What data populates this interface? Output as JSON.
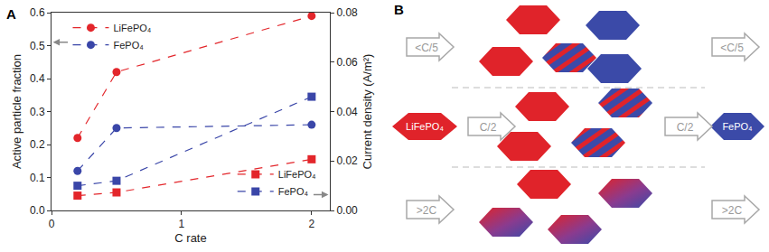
{
  "chart_data": {
    "type": "line",
    "panel_label": "A",
    "x_label": "C rate",
    "y_label": "Active particle fraction",
    "y2_label": "Current density (A/m²)",
    "x": [
      0.2,
      0.5,
      2
    ],
    "xlim": [
      0,
      2.14
    ],
    "xticks": [
      0,
      1,
      2
    ],
    "ylim": [
      0,
      0.6
    ],
    "yticks": [
      {
        "value": 0,
        "label": "0.0"
      },
      0.1,
      0.2,
      0.3,
      0.4,
      0.5,
      0.6
    ],
    "y2lim": [
      0,
      0.08
    ],
    "y2ticks": [
      {
        "value": 0,
        "label": "0.00"
      },
      0.02,
      0.04,
      0.06,
      0.08
    ],
    "legend": "upper left",
    "grid": false,
    "series": [
      {
        "name": "LiFePO₄",
        "color": "#e3262b",
        "marker": "circle",
        "line_style": "dash",
        "axis": "y",
        "values": [
          0.22,
          0.42,
          0.59
        ]
      },
      {
        "name": "FePO₄",
        "color": "#3a46a8",
        "marker": "circle",
        "line_style": "dash",
        "axis": "y",
        "values": [
          0.12,
          0.25,
          0.26
        ]
      },
      {
        "name": "LiFePO₄",
        "color": "#e3262b",
        "marker": "square",
        "line_style": "dash",
        "axis": "y2",
        "values": [
          0.006,
          0.0073,
          0.0207
        ]
      },
      {
        "name": "FePO₄",
        "color": "#3a46a8",
        "marker": "square",
        "line_style": "dash",
        "axis": "y2",
        "values": [
          0.01,
          0.012,
          0.046
        ]
      }
    ]
  },
  "diagram": {
    "panel_label": "B",
    "start": "LiFePO₄",
    "end": "FePO₄",
    "rows": [
      {
        "rate": "<C/5"
      },
      {
        "rate": "C/2"
      },
      {
        "rate": ">2C"
      }
    ]
  }
}
